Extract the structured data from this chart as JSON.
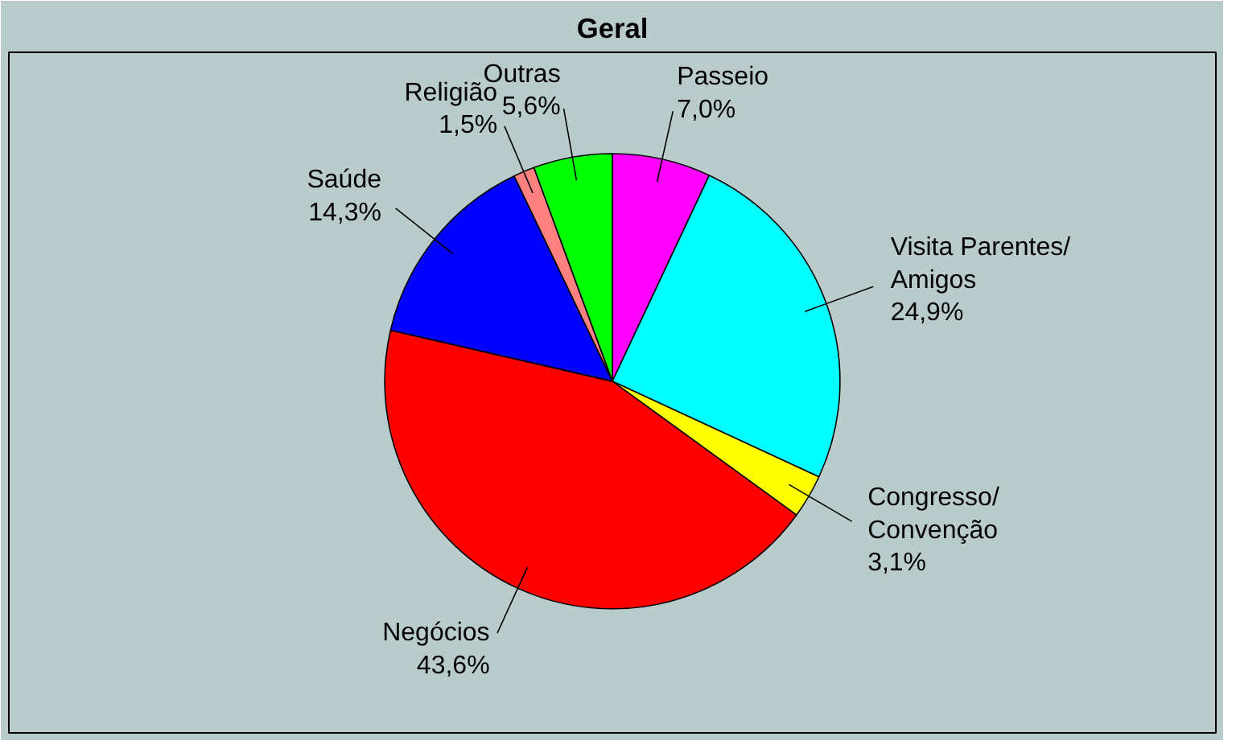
{
  "chart_data": {
    "type": "pie",
    "title": "Geral",
    "categories": [
      "Passeio",
      "Visita Parentes/ Amigos",
      "Congresso/ Convenção",
      "Negócios",
      "Saúde",
      "Religião",
      "Outras"
    ],
    "values": [
      7.0,
      24.9,
      3.1,
      43.6,
      14.3,
      1.5,
      5.6
    ],
    "value_labels": [
      "7,0%",
      "24,9%",
      "3,1%",
      "43,6%",
      "14,3%",
      "1,5%",
      "5,6%"
    ],
    "colors": [
      "#ff00ff",
      "#00ffff",
      "#ffff00",
      "#ff0000",
      "#0000ff",
      "#ff8080",
      "#00ff00"
    ]
  }
}
